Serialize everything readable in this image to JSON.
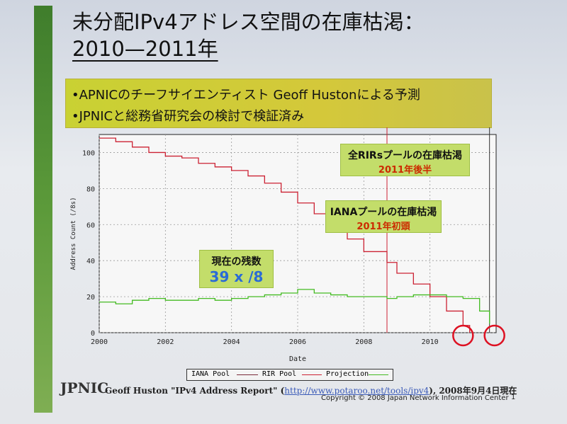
{
  "slide": {
    "title_line1": "未分配IPv4アドレス空間の在庫枯渇：",
    "title_line2": "2010—2011年",
    "bullets": [
      "•APNICのチーフサイエンティスト Geoff Hustonによる予測",
      "•JPNICと総務省研究会の検討で検証済み"
    ],
    "footer_text": "Geoff Huston \"IPv4 Address Report\" (",
    "footer_link": "http://www.potaroo.net/tools/ipv4",
    "footer_suffix": "), 2008年9月4日現在",
    "copyright": "Copyright © 2008 Japan Network Information Center",
    "page_number": "1",
    "logo_text": "JPNIC"
  },
  "callouts": {
    "current": {
      "line1": "現在の残数",
      "line2": "39 x /8"
    },
    "iana": {
      "line1": "IANAプールの在庫枯渇",
      "line2": "2011年初頭"
    },
    "rirs": {
      "line1": "全RIRsプールの在庫枯渇",
      "line2": "2011年後半"
    }
  },
  "colors": {
    "iana_pool": "#7a2a3a",
    "rir_pool": "#cc2233",
    "projection": "#44bb22",
    "accent_bar": "#c9d133",
    "callout_bg": "#c3dd6a"
  },
  "chart_data": {
    "type": "line",
    "xlabel": "Date",
    "ylabel": "Address Count (/8s)",
    "xlim": [
      2000,
      2012
    ],
    "ylim": [
      0,
      110
    ],
    "x_ticks": [
      "2000",
      "2002",
      "2004",
      "2006",
      "2008",
      "2010"
    ],
    "y_ticks": [
      "0",
      "20",
      "40",
      "60",
      "80",
      "100"
    ],
    "grid": true,
    "vertical_markers": [
      2008.7,
      2011.8
    ],
    "legend": [
      "IANA Pool",
      "RIR Pool",
      "Projection"
    ],
    "series": [
      {
        "name": "IANA Pool",
        "x": [
          2000,
          2000.5,
          2001,
          2001.5,
          2002,
          2002.5,
          2003,
          2003.5,
          2004,
          2004.5,
          2005,
          2005.5,
          2006,
          2006.5,
          2007,
          2007.5,
          2008,
          2008.7,
          2009,
          2009.5,
          2010,
          2010.5,
          2011,
          2011.2
        ],
        "y": [
          108,
          106,
          103,
          100,
          98,
          97,
          94,
          92,
          90,
          87,
          83,
          78,
          72,
          66,
          59,
          52,
          45,
          39,
          33,
          27,
          20,
          12,
          4,
          0
        ]
      },
      {
        "name": "RIR Pool",
        "x": [
          2000,
          2000.5,
          2001,
          2001.5,
          2002,
          2002.5,
          2003,
          2003.5,
          2004,
          2004.5,
          2005,
          2005.5,
          2006,
          2006.5,
          2007,
          2007.5,
          2008,
          2008.7,
          2009,
          2009.5,
          2010,
          2010.5,
          2011,
          2011.5,
          2011.8
        ],
        "y": [
          17,
          16,
          18,
          19,
          18,
          18,
          19,
          18,
          19,
          20,
          21,
          22,
          24,
          22,
          21,
          20,
          20,
          19,
          20,
          21,
          21,
          20,
          19,
          12,
          5
        ]
      }
    ]
  }
}
